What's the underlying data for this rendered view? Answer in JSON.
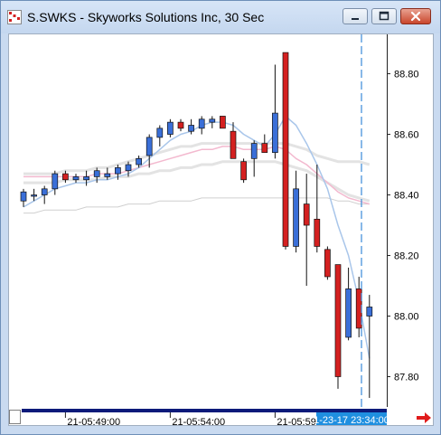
{
  "window": {
    "title": "S.SWKS - Skyworks Solutions Inc, 30 Sec"
  },
  "chart_data": {
    "type": "candlestick",
    "symbol": "S.SWKS",
    "company": "Skyworks Solutions Inc",
    "interval": "30 Sec",
    "ylim": [
      87.7,
      88.93
    ],
    "y_ticks": [
      87.8,
      88.0,
      88.2,
      88.4,
      88.6,
      88.8
    ],
    "y_tick_labels": [
      "87.80",
      "88.00",
      "88.20",
      "88.40",
      "88.60",
      "88.80"
    ],
    "x_tick_labels": [
      "21-05:49:00",
      "21-05:54:00",
      "21-05:59:00"
    ],
    "x_tick_index": [
      4,
      14,
      24
    ],
    "cursor_label": "1-23-17 23:34:00",
    "colors": {
      "up": "#3a6fd8",
      "down": "#d42020",
      "sma_fast": "#a9c6ea",
      "sma_pink": "#f3b9cf",
      "sma_gray": "#e3e3e3"
    },
    "candles": [
      {
        "o": 88.38,
        "h": 88.42,
        "l": 88.36,
        "c": 88.41
      },
      {
        "o": 88.4,
        "h": 88.42,
        "l": 88.38,
        "c": 88.4
      },
      {
        "o": 88.4,
        "h": 88.43,
        "l": 88.37,
        "c": 88.42
      },
      {
        "o": 88.42,
        "h": 88.48,
        "l": 88.4,
        "c": 88.47
      },
      {
        "o": 88.47,
        "h": 88.48,
        "l": 88.44,
        "c": 88.45
      },
      {
        "o": 88.45,
        "h": 88.47,
        "l": 88.44,
        "c": 88.46
      },
      {
        "o": 88.45,
        "h": 88.48,
        "l": 88.43,
        "c": 88.46
      },
      {
        "o": 88.46,
        "h": 88.49,
        "l": 88.44,
        "c": 88.48
      },
      {
        "o": 88.46,
        "h": 88.49,
        "l": 88.45,
        "c": 88.47
      },
      {
        "o": 88.47,
        "h": 88.5,
        "l": 88.45,
        "c": 88.49
      },
      {
        "o": 88.48,
        "h": 88.51,
        "l": 88.46,
        "c": 88.5
      },
      {
        "o": 88.5,
        "h": 88.53,
        "l": 88.49,
        "c": 88.52
      },
      {
        "o": 88.53,
        "h": 88.6,
        "l": 88.49,
        "c": 88.59
      },
      {
        "o": 88.59,
        "h": 88.63,
        "l": 88.56,
        "c": 88.62
      },
      {
        "o": 88.6,
        "h": 88.65,
        "l": 88.59,
        "c": 88.64
      },
      {
        "o": 88.64,
        "h": 88.65,
        "l": 88.61,
        "c": 88.62
      },
      {
        "o": 88.61,
        "h": 88.65,
        "l": 88.6,
        "c": 88.63
      },
      {
        "o": 88.62,
        "h": 88.66,
        "l": 88.6,
        "c": 88.65
      },
      {
        "o": 88.64,
        "h": 88.66,
        "l": 88.62,
        "c": 88.65
      },
      {
        "o": 88.66,
        "h": 88.66,
        "l": 88.62,
        "c": 88.62
      },
      {
        "o": 88.61,
        "h": 88.64,
        "l": 88.52,
        "c": 88.52
      },
      {
        "o": 88.51,
        "h": 88.52,
        "l": 88.44,
        "c": 88.45
      },
      {
        "o": 88.52,
        "h": 88.58,
        "l": 88.46,
        "c": 88.57
      },
      {
        "o": 88.57,
        "h": 88.6,
        "l": 88.54,
        "c": 88.54
      },
      {
        "o": 88.54,
        "h": 88.83,
        "l": 88.52,
        "c": 88.67
      },
      {
        "o": 88.87,
        "h": 88.87,
        "l": 88.22,
        "c": 88.23
      },
      {
        "o": 88.23,
        "h": 88.48,
        "l": 88.21,
        "c": 88.42
      },
      {
        "o": 88.37,
        "h": 88.47,
        "l": 88.1,
        "c": 88.3
      },
      {
        "o": 88.32,
        "h": 88.5,
        "l": 88.21,
        "c": 88.23
      },
      {
        "o": 88.22,
        "h": 88.23,
        "l": 88.12,
        "c": 88.13
      },
      {
        "o": 88.17,
        "h": 88.17,
        "l": 87.76,
        "c": 87.8
      },
      {
        "o": 87.93,
        "h": 88.16,
        "l": 87.92,
        "c": 88.09
      },
      {
        "o": 88.09,
        "h": 88.13,
        "l": 87.93,
        "c": 87.96
      },
      {
        "o": 88.0,
        "h": 88.07,
        "l": 87.73,
        "c": 88.03
      }
    ],
    "sma_fast": [
      88.36,
      88.38,
      88.4,
      88.42,
      88.43,
      88.44,
      88.44,
      88.45,
      88.45,
      88.46,
      88.47,
      88.49,
      88.52,
      88.55,
      88.58,
      88.6,
      88.61,
      88.63,
      88.64,
      88.64,
      88.63,
      88.6,
      88.58,
      88.56,
      88.6,
      88.66,
      88.63,
      88.57,
      88.5,
      88.42,
      88.3,
      88.2,
      88.05,
      87.86
    ],
    "sma_pink": [
      88.46,
      88.46,
      88.46,
      88.46,
      88.46,
      88.46,
      88.46,
      88.47,
      88.47,
      88.47,
      88.48,
      88.49,
      88.5,
      88.51,
      88.52,
      88.53,
      88.54,
      88.55,
      88.55,
      88.56,
      88.56,
      88.55,
      88.55,
      88.55,
      88.56,
      88.55,
      88.52,
      88.5,
      88.47,
      88.44,
      88.41,
      88.39,
      88.38,
      88.37
    ],
    "sma_gray1": [
      88.47,
      88.47,
      88.47,
      88.47,
      88.48,
      88.48,
      88.48,
      88.49,
      88.49,
      88.5,
      88.51,
      88.52,
      88.53,
      88.54,
      88.55,
      88.56,
      88.56,
      88.57,
      88.57,
      88.57,
      88.57,
      88.57,
      88.57,
      88.57,
      88.57,
      88.57,
      88.56,
      88.55,
      88.53,
      88.52,
      88.51,
      88.51,
      88.51,
      88.5
    ],
    "sma_gray2": [
      88.44,
      88.44,
      88.44,
      88.44,
      88.45,
      88.45,
      88.45,
      88.45,
      88.46,
      88.46,
      88.46,
      88.47,
      88.47,
      88.48,
      88.48,
      88.49,
      88.49,
      88.5,
      88.5,
      88.51,
      88.51,
      88.51,
      88.51,
      88.51,
      88.51,
      88.5,
      88.49,
      88.48,
      88.46,
      88.44,
      88.42,
      88.4,
      88.39,
      88.38
    ],
    "sma_gray3": [
      88.34,
      88.34,
      88.35,
      88.35,
      88.35,
      88.35,
      88.36,
      88.36,
      88.36,
      88.36,
      88.37,
      88.37,
      88.37,
      88.38,
      88.38,
      88.38,
      88.38,
      88.39,
      88.39,
      88.39,
      88.39,
      88.39,
      88.39,
      88.39,
      88.39,
      88.39,
      88.39,
      88.39,
      88.39,
      88.39,
      88.38,
      88.38,
      88.37,
      88.37
    ]
  }
}
